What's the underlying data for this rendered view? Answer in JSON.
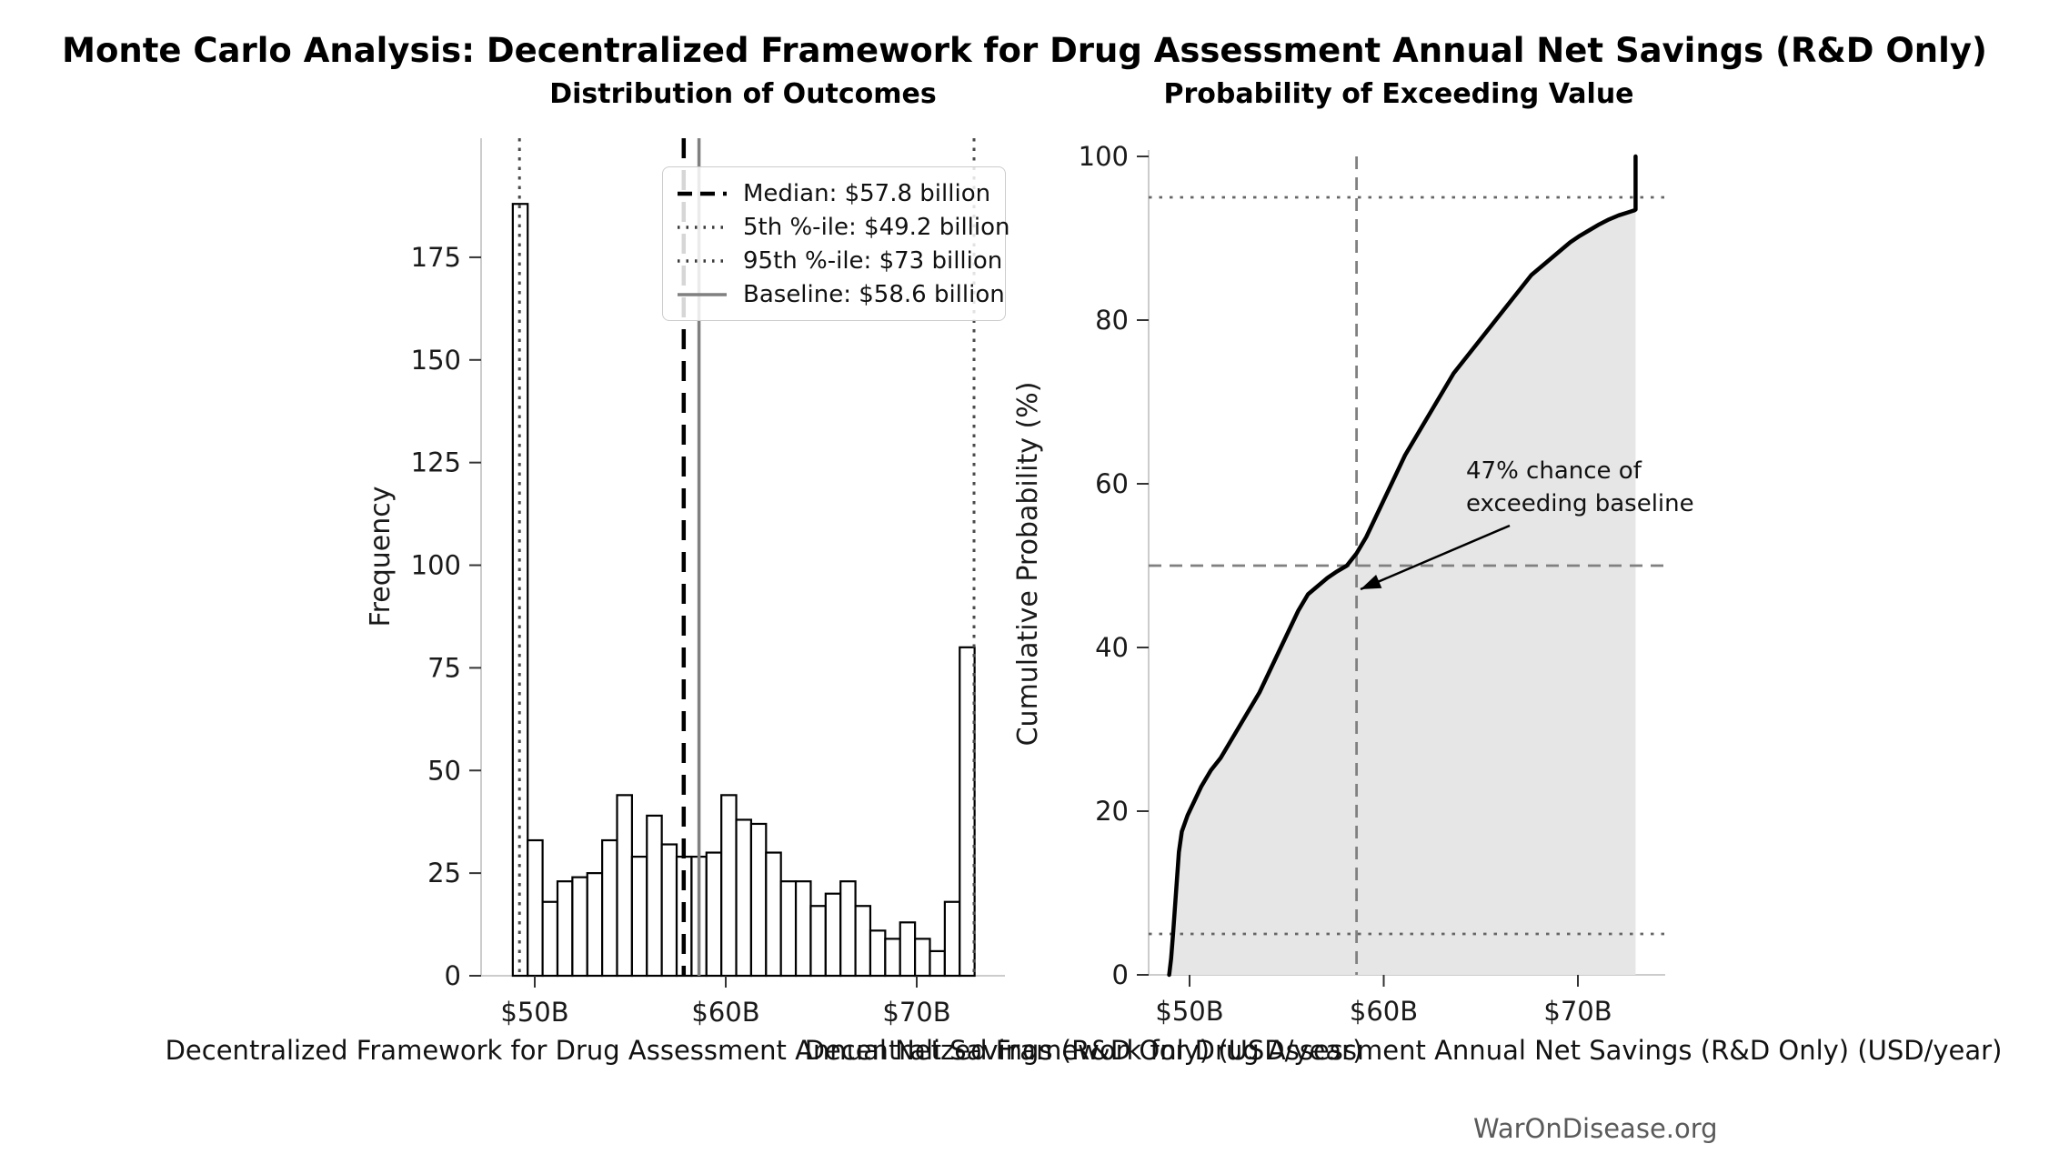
{
  "figure": {
    "title": "Monte Carlo Analysis: Decentralized Framework for Drug Assessment Annual Net Savings (R&D Only)",
    "watermark": "WarOnDisease.org"
  },
  "colors": {
    "black_line": "#000000",
    "baseline_gray": "#808080",
    "percentile_gray": "#4a4a4a",
    "crosshair_gray": "#808080",
    "dotted_ref_gray": "#666666",
    "area_fill": "#e6e6e6",
    "spine": "#cccccc",
    "tick": "#333333",
    "text": "#1a1a1a",
    "bar_fill": "#ffffff"
  },
  "left_chart": {
    "title": "Distribution of Outcomes",
    "ylabel": "Frequency",
    "xlabel": "Decentralized Framework for Drug Assessment Annual Net Savings (R&D Only) (USD/year)",
    "legend": [
      {
        "label": "Median: $57.8 billion",
        "style": "dashed-black"
      },
      {
        "label": "5th %-ile: $49.2 billion",
        "style": "dotted-gray"
      },
      {
        "label": "95th %-ile: $73 billion",
        "style": "dotted-gray"
      },
      {
        "label": "Baseline: $58.6 billion",
        "style": "solid-gray"
      }
    ]
  },
  "right_chart": {
    "title": "Probability of Exceeding Value",
    "ylabel": "Cumulative Probability (%)",
    "xlabel": "Decentralized Framework for Drug Assessment Annual Net Savings (R&D Only) (USD/year)",
    "annotation": {
      "line1": "47% chance of",
      "line2": "exceeding baseline"
    }
  },
  "chart_data": [
    {
      "type": "bar",
      "title": "Distribution of Outcomes",
      "xlabel": "Decentralized Framework for Drug Assessment Annual Net Savings (R&D Only) (USD/year)",
      "ylabel": "Frequency",
      "bin_start": 48.85,
      "bin_width": 0.78,
      "values": [
        188,
        33,
        18,
        23,
        24,
        25,
        33,
        44,
        29,
        39,
        32,
        29,
        29,
        30,
        44,
        38,
        37,
        30,
        23,
        23,
        17,
        20,
        23,
        17,
        11,
        9,
        13,
        9,
        6,
        18,
        80
      ],
      "xlim": [
        47.5,
        74.5
      ],
      "ylim": [
        0,
        204
      ],
      "xticks": [
        {
          "value": 50,
          "label": "$50B"
        },
        {
          "value": 60,
          "label": "$60B"
        },
        {
          "value": 70,
          "label": "$70B"
        }
      ],
      "yticks": [
        0,
        25,
        50,
        75,
        100,
        125,
        150,
        175
      ],
      "markers": {
        "median": {
          "value": 57.8,
          "label": "Median: $57.8 billion"
        },
        "p5": {
          "value": 49.2,
          "label": "5th %-ile: $49.2 billion"
        },
        "p95": {
          "value": 73.0,
          "label": "95th %-ile: $73 billion"
        },
        "baseline": {
          "value": 58.6,
          "label": "Baseline: $58.6 billion"
        }
      },
      "grid": false,
      "legend_position": "upper right"
    },
    {
      "type": "area",
      "title": "Probability of Exceeding Value",
      "xlabel": "Decentralized Framework for Drug Assessment Annual Net Savings (R&D Only) (USD/year)",
      "ylabel": "Cumulative Probability (%)",
      "xlim": [
        47.9,
        74.5
      ],
      "ylim": [
        0,
        100
      ],
      "xticks": [
        {
          "value": 50,
          "label": "$50B"
        },
        {
          "value": 60,
          "label": "$60B"
        },
        {
          "value": 70,
          "label": "$70B"
        }
      ],
      "yticks": [
        0,
        20,
        40,
        60,
        80,
        100
      ],
      "curve": [
        [
          48.95,
          0
        ],
        [
          49.05,
          2
        ],
        [
          49.15,
          5
        ],
        [
          49.3,
          10
        ],
        [
          49.45,
          15
        ],
        [
          49.6,
          17.5
        ],
        [
          49.9,
          19.5
        ],
        [
          50.2,
          21
        ],
        [
          50.6,
          23
        ],
        [
          51.1,
          25
        ],
        [
          51.6,
          26.5
        ],
        [
          52.1,
          28.5
        ],
        [
          52.6,
          30.5
        ],
        [
          53.1,
          32.5
        ],
        [
          53.6,
          34.5
        ],
        [
          54.1,
          37
        ],
        [
          54.6,
          39.5
        ],
        [
          55.1,
          42
        ],
        [
          55.6,
          44.5
        ],
        [
          56.1,
          46.5
        ],
        [
          56.6,
          47.5
        ],
        [
          57.1,
          48.5
        ],
        [
          57.6,
          49.3
        ],
        [
          58.1,
          50
        ],
        [
          58.6,
          51.5
        ],
        [
          59.1,
          53.5
        ],
        [
          59.6,
          56
        ],
        [
          60.1,
          58.5
        ],
        [
          60.6,
          61
        ],
        [
          61.1,
          63.5
        ],
        [
          61.6,
          65.5
        ],
        [
          62.1,
          67.5
        ],
        [
          62.6,
          69.5
        ],
        [
          63.1,
          71.5
        ],
        [
          63.6,
          73.5
        ],
        [
          64.1,
          75
        ],
        [
          64.6,
          76.5
        ],
        [
          65.1,
          78
        ],
        [
          65.6,
          79.5
        ],
        [
          66.1,
          81
        ],
        [
          66.6,
          82.5
        ],
        [
          67.1,
          84
        ],
        [
          67.6,
          85.5
        ],
        [
          68.1,
          86.5
        ],
        [
          68.6,
          87.5
        ],
        [
          69.1,
          88.5
        ],
        [
          69.6,
          89.5
        ],
        [
          70.1,
          90.3
        ],
        [
          70.6,
          91
        ],
        [
          71.1,
          91.7
        ],
        [
          71.6,
          92.3
        ],
        [
          72.1,
          92.8
        ],
        [
          72.5,
          93.1
        ],
        [
          72.9,
          93.4
        ],
        [
          72.97,
          93.5
        ],
        [
          72.97,
          100
        ]
      ],
      "ref_lines": {
        "dotted_h": [
          5,
          95
        ],
        "dashed_h": 50,
        "dashed_v": 58.6
      },
      "annotation": {
        "text": [
          "47% chance of",
          "exceeding baseline"
        ],
        "probability_pct": 47
      }
    }
  ]
}
